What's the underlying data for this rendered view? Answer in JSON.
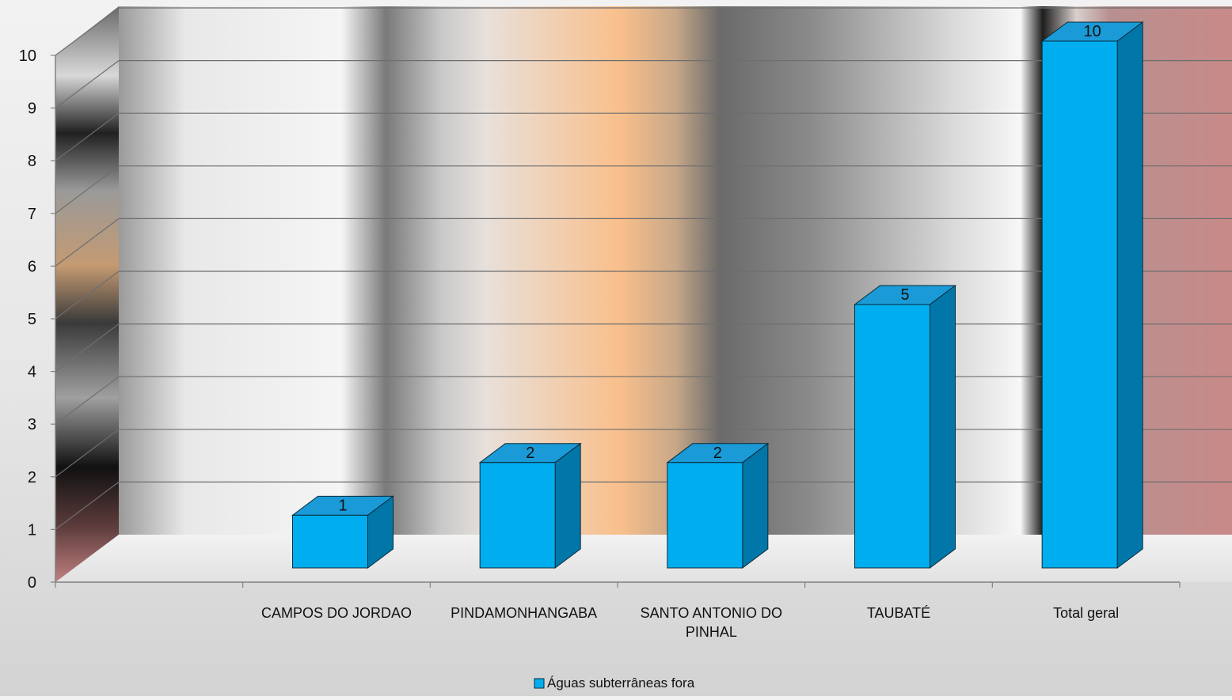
{
  "chart_data": {
    "type": "bar",
    "title": "",
    "xlabel": "",
    "ylabel": "",
    "ylim": [
      0,
      10
    ],
    "yticks": [
      "0",
      "1",
      "2",
      "3",
      "4",
      "5",
      "6",
      "7",
      "8",
      "9",
      "10"
    ],
    "categories": [
      "",
      "CAMPOS DO JORDAO",
      "PINDAMONHANGABA",
      "SANTO ANTONIO DO PINHAL",
      "TAUBATÉ",
      "Total geral"
    ],
    "series": [
      {
        "name": "Águas subterrâneas fora",
        "values": [
          null,
          1,
          2,
          2,
          5,
          10
        ],
        "data_labels": [
          "",
          "1",
          "2",
          "2",
          "5",
          "10"
        ]
      }
    ],
    "grid": true,
    "legend_position": "bottom",
    "colors": {
      "bar_front": "#00aeef",
      "bar_top": "#1a9ad6",
      "bar_side": "#0077a8",
      "bar_edge": "#0a2a3a",
      "grid": "#6e6e6e"
    }
  }
}
